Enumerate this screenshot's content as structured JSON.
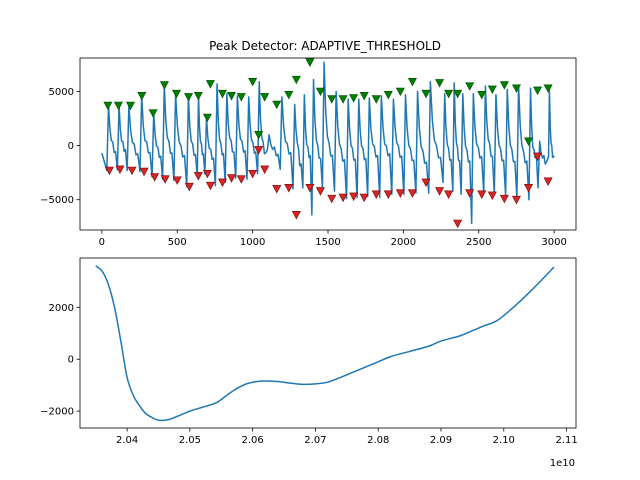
{
  "chart_data": [
    {
      "type": "line",
      "title": "Peak Detector: ADAPTIVE_THRESHOLD",
      "xlabel": "",
      "ylabel": "",
      "xlim": [
        -145,
        3145
      ],
      "ylim": [
        -7800,
        8100
      ],
      "xticks": [
        0,
        500,
        1000,
        1500,
        2000,
        2500,
        3000
      ],
      "yticks": [
        -5000,
        0,
        5000
      ],
      "grid": false,
      "colors": {
        "line": "#1f77b4",
        "peak_marker": "#008000",
        "trough_marker": "#d62728"
      },
      "cycle_starts": [
        30,
        100,
        165,
        250,
        330,
        400,
        475,
        560,
        630,
        680,
        750,
        815,
        885,
        960,
        1030,
        1095,
        1180,
        1265,
        1330,
        1390,
        1460,
        1540,
        1620,
        1690,
        1760,
        1840,
        1920,
        2000,
        2080,
        2165,
        2260,
        2325,
        2380,
        2450,
        2530,
        2600,
        2675,
        2750,
        2830,
        2890,
        2960
      ],
      "series": [
        {
          "x": [
            0,
            35,
            80,
            100,
            110,
            170,
            190,
            280,
            300,
            320,
            350,
            370,
            410,
            440,
            470,
            490,
            530,
            580,
            625,
            640,
            670,
            700,
            760,
            800,
            820,
            860,
            890,
            925,
            960,
            1000,
            1040,
            1050,
            1080,
            1120,
            1165,
            1180,
            1280,
            1300,
            1310,
            1375,
            1390,
            1420,
            1480,
            1540,
            1550,
            1600,
            1625,
            1700,
            1780,
            1850,
            1870,
            1900,
            1930,
            1950,
            1970,
            2000,
            2025,
            2060,
            2100,
            2150,
            2180,
            2240,
            2320,
            2360,
            2370,
            2420,
            2490,
            2520,
            2560,
            2610,
            2640,
            2700,
            2760,
            2800,
            2830,
            2860,
            2880,
            2910,
            2960,
            3000
          ],
          "y": [
            -700,
            -500,
            -650,
            -700,
            -800,
            -400,
            -800,
            -1000,
            -700,
            -800,
            -1000,
            -1100,
            -1100,
            -800,
            -900,
            -1000,
            -1200,
            -900,
            -1000,
            -1100,
            -900,
            -1200,
            -1300,
            -1000,
            -800,
            -600,
            -900,
            -700,
            -600,
            -800,
            -700,
            -1000,
            -900,
            -800,
            -800,
            -1100,
            -700,
            -900,
            -2000,
            -1200,
            -1000,
            -1300,
            -1500,
            -1100,
            -1300,
            -1600,
            -1300,
            -1500,
            -1300,
            -1000,
            -1400,
            -1000,
            -700,
            -1000,
            -1200,
            -1100,
            -1500,
            -1500,
            -1700,
            -1800,
            -1300,
            -1300,
            -1500,
            -1500,
            -1600,
            -1700,
            -1400,
            -1200,
            -1000,
            -1300,
            -1500,
            -1600,
            -1700,
            -1900,
            -1500,
            -2000,
            -1000,
            -1700,
            -1500,
            -1100
          ]
        }
      ],
      "peaks": {
        "x": [
          40,
          110,
          190,
          265,
          340,
          415,
          495,
          575,
          640,
          700,
          720,
          800,
          860,
          925,
          1000,
          1040,
          1080,
          1160,
          1240,
          1290,
          1380,
          1450,
          1525,
          1600,
          1670,
          1740,
          1820,
          1900,
          1980,
          2060,
          2150,
          2240,
          2300,
          2360,
          2440,
          2520,
          2590,
          2670,
          2750,
          2830,
          2890,
          2960
        ],
        "y": [
          3700,
          3700,
          3700,
          4600,
          3000,
          5600,
          4800,
          4500,
          4600,
          2600,
          5700,
          4800,
          4600,
          4500,
          5900,
          1000,
          4500,
          3800,
          4700,
          6100,
          7700,
          5000,
          4300,
          4300,
          4400,
          4600,
          4300,
          4700,
          5000,
          5900,
          4800,
          5800,
          4800,
          4800,
          5500,
          4700,
          5200,
          5600,
          5300,
          400,
          5100,
          5300
        ]
      },
      "troughs": {
        "x": [
          50,
          120,
          200,
          280,
          350,
          420,
          500,
          580,
          640,
          700,
          720,
          800,
          860,
          925,
          1000,
          1040,
          1080,
          1160,
          1240,
          1290,
          1380,
          1450,
          1525,
          1600,
          1670,
          1740,
          1820,
          1900,
          1980,
          2060,
          2150,
          2240,
          2300,
          2360,
          2440,
          2520,
          2590,
          2670,
          2750,
          2830,
          2890,
          2960
        ],
        "y": [
          -2300,
          -2200,
          -2300,
          -2400,
          -2900,
          -3100,
          -3200,
          -3800,
          -2800,
          -2600,
          -3700,
          -3400,
          -3000,
          -3100,
          -2600,
          -400,
          -2200,
          -4000,
          -3900,
          -6400,
          -3900,
          -4200,
          -4900,
          -4800,
          -4700,
          -4800,
          -4500,
          -4500,
          -4400,
          -4400,
          -3400,
          -4200,
          -4500,
          -7200,
          -4400,
          -4500,
          -4600,
          -4900,
          -5000,
          -3900,
          -1000,
          -3300
        ]
      }
    },
    {
      "type": "line",
      "title": "",
      "xlabel": "",
      "ylabel": "",
      "x_offset_label": "1e10",
      "xlim": [
        2.0325,
        2.1115
      ],
      "ylim": [
        -2650,
        3900
      ],
      "xticks": [
        2.04,
        2.05,
        2.06,
        2.07,
        2.08,
        2.09,
        2.1,
        2.11
      ],
      "xtick_labels": [
        "2.04",
        "2.05",
        "2.06",
        "2.07",
        "2.08",
        "2.09",
        "2.10",
        "2.11"
      ],
      "yticks": [
        -2000,
        0,
        2000
      ],
      "grid": false,
      "colors": {
        "line": "#1f77b4"
      },
      "series": [
        {
          "x": [
            2.035,
            2.036,
            2.037,
            2.038,
            2.039,
            2.04,
            2.041,
            2.042,
            2.043,
            2.044,
            2.045,
            2.046,
            2.047,
            2.048,
            2.049,
            2.05,
            2.052,
            2.054,
            2.055,
            2.057,
            2.059,
            2.061,
            2.062,
            2.064,
            2.066,
            2.068,
            2.07,
            2.072,
            2.074,
            2.076,
            2.079,
            2.082,
            2.085,
            2.088,
            2.09,
            2.093,
            2.095,
            2.097,
            2.099,
            2.102,
            2.105,
            2.108
          ],
          "y": [
            3600,
            3400,
            2900,
            2000,
            700,
            -700,
            -1400,
            -1800,
            -2100,
            -2250,
            -2350,
            -2350,
            -2300,
            -2200,
            -2100,
            -2000,
            -1850,
            -1700,
            -1550,
            -1200,
            -950,
            -850,
            -840,
            -860,
            -920,
            -970,
            -950,
            -880,
            -700,
            -500,
            -200,
            100,
            300,
            500,
            700,
            900,
            1100,
            1300,
            1500,
            2100,
            2800,
            3550
          ]
        }
      ]
    }
  ]
}
